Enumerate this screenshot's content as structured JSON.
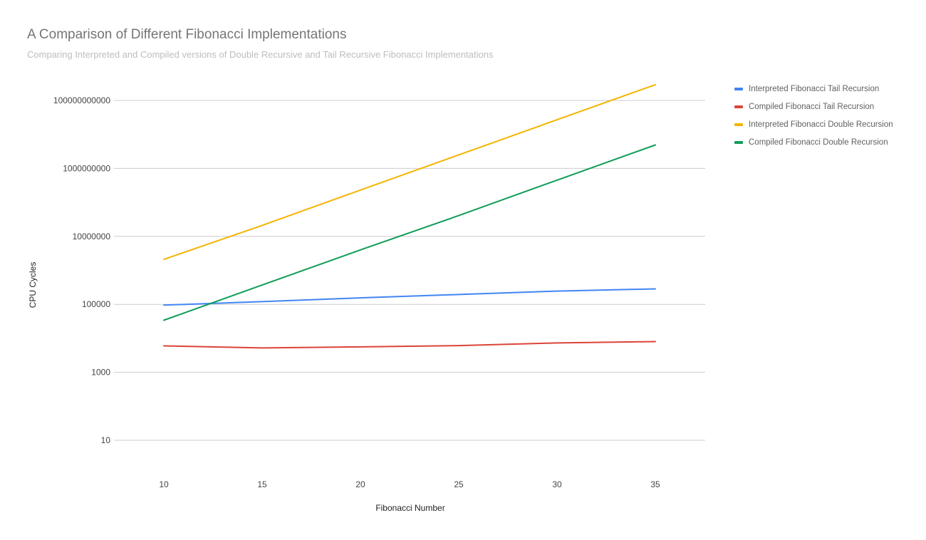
{
  "chart_data": {
    "type": "line",
    "title": "A Comparison of Different Fibonacci Implementations",
    "subtitle": "Comparing Interpreted and Compiled versions of Double Recursive and Tail Recursive Fibonacci Implementations",
    "xlabel": "Fibonacci Number",
    "ylabel": "CPU Cycles",
    "x": [
      10,
      15,
      20,
      25,
      30,
      35
    ],
    "x_ticks": [
      "10",
      "15",
      "20",
      "25",
      "30",
      "35"
    ],
    "y_scale": "log",
    "ylim": [
      1,
      100000000000
    ],
    "y_ticks": [
      {
        "value": 10,
        "label": "10"
      },
      {
        "value": 1000,
        "label": "1000"
      },
      {
        "value": 100000,
        "label": "100000"
      },
      {
        "value": 10000000,
        "label": "10000000"
      },
      {
        "value": 1000000000,
        "label": "1000000000"
      },
      {
        "value": 100000000000,
        "label": "100000000000"
      }
    ],
    "grid": true,
    "legend_position": "right",
    "series": [
      {
        "name": "Interpreted Fibonacci Tail Recursion",
        "color": "#4285f4",
        "values": [
          95000,
          120000,
          155000,
          195000,
          245000,
          285000
        ]
      },
      {
        "name": "Compiled Fibonacci Tail Recursion",
        "color": "#db4437",
        "values": [
          6000,
          5200,
          5600,
          6100,
          7300,
          8000
        ]
      },
      {
        "name": "Interpreted Fibonacci Double Recursion",
        "color": "#f4b400",
        "values": [
          2100000,
          21000000,
          230000000,
          2500000000,
          27000000000,
          290000000000
        ]
      },
      {
        "name": "Compiled Fibonacci Double Recursion",
        "color": "#0f9d58",
        "values": [
          34000,
          370000,
          4000000,
          41000000,
          450000000,
          4900000000
        ]
      }
    ]
  }
}
